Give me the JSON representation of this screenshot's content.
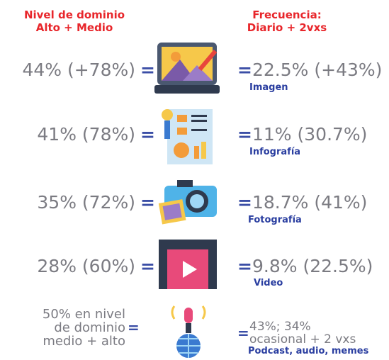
{
  "header": {
    "left": [
      "Nivel de dominio",
      "Alto + Medio"
    ],
    "right": [
      "Frecuencia:",
      "Diario + 2vxs"
    ]
  },
  "rows": [
    {
      "left": [
        "44% (+78%)"
      ],
      "left_sign": "=",
      "right_sign": "=",
      "right": [
        "22.5% (+43%)"
      ],
      "label": "Imagen"
    },
    {
      "left": [
        "41% (78%)"
      ],
      "left_sign": "=",
      "right_sign": "=",
      "right": [
        "11% (30.7%)"
      ],
      "label": "Infografía"
    },
    {
      "left": [
        "35% (72%)"
      ],
      "left_sign": "=",
      "right_sign": "=",
      "right": [
        "18.7% (41%)"
      ],
      "label": "Fotografía"
    },
    {
      "left": [
        "28% (60%)"
      ],
      "left_sign": "=",
      "right_sign": "=",
      "right": [
        "9.8% (22.5%)"
      ],
      "label": "Video"
    },
    {
      "left": [
        "50% en nivel",
        "de dominio",
        "medio + alto"
      ],
      "left_sign": "=",
      "right_sign": "=",
      "right": [
        "43%; 34%",
        "ocasional + 2 vxs"
      ],
      "label": "Podcast, audio, memes"
    }
  ]
}
